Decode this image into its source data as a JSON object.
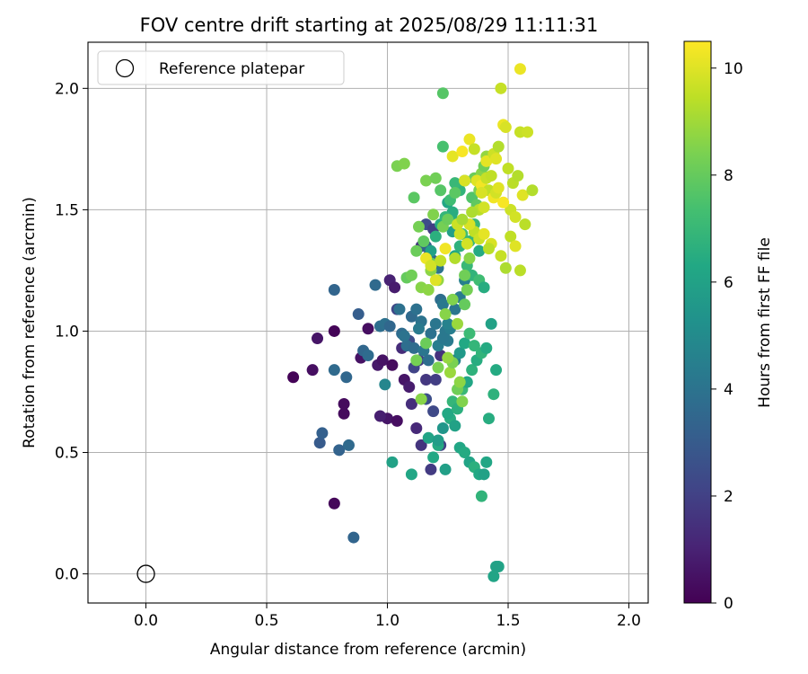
{
  "chart_data": {
    "type": "scatter",
    "title": "FOV centre drift starting at 2025/08/29 11:11:31",
    "xlabel": "Angular distance from reference (arcmin)",
    "ylabel": "Rotation from reference (arcmin)",
    "xlim": [
      -0.24,
      2.08
    ],
    "ylim": [
      -0.12,
      2.19
    ],
    "xticks": [
      "0.0",
      "0.5",
      "1.0",
      "1.5",
      "2.0"
    ],
    "yticks": [
      "0.0",
      "0.5",
      "1.0",
      "1.5",
      "2.0"
    ],
    "grid": true,
    "legend": {
      "placement": "top-left",
      "entries": [
        "Reference platepar"
      ]
    },
    "reference_point": {
      "x": 0.0,
      "y": 0.0
    },
    "colorbar": {
      "label": "Hours from first FF file",
      "colormap": "viridis",
      "range": [
        0,
        10.5
      ],
      "ticks": [
        "0",
        "2",
        "4",
        "6",
        "8",
        "10"
      ]
    },
    "series": [
      {
        "x": [
          0.61,
          0.69,
          0.71,
          0.78,
          0.82,
          0.82,
          0.89,
          0.92,
          0.96,
          0.98,
          1.0,
          1.02,
          1.04,
          1.07,
          1.09,
          0.97,
          1.01,
          1.03,
          1.06,
          1.1,
          1.12,
          1.14,
          1.16,
          1.18,
          1.2,
          1.22,
          0.78,
          1.04,
          1.09,
          1.11,
          1.13,
          1.16,
          1.19,
          1.22,
          1.14,
          1.17,
          1.2,
          1.16,
          1.19
        ],
        "y": [
          0.81,
          0.84,
          0.97,
          1.0,
          0.66,
          0.7,
          0.89,
          1.01,
          0.86,
          0.88,
          0.64,
          0.86,
          0.63,
          0.8,
          0.77,
          0.65,
          1.21,
          1.18,
          0.93,
          0.7,
          0.6,
          0.53,
          0.8,
          0.43,
          0.8,
          0.53,
          0.29,
          1.09,
          0.96,
          0.85,
          0.88,
          0.72,
          0.67,
          0.9,
          1.35,
          1.31,
          1.28,
          1.44,
          1.42
        ],
        "hours": [
          0.1,
          0.4,
          0.6,
          0.1,
          0.3,
          0.3,
          0.5,
          0.4,
          0.7,
          0.5,
          0.6,
          0.3,
          0.4,
          0.6,
          0.8,
          0.9,
          1.0,
          0.8,
          1.3,
          1.4,
          1.2,
          1.6,
          1.7,
          1.8,
          1.9,
          2.0,
          0.2,
          2.2,
          2.4,
          2.1,
          1.8,
          2.5,
          2.3,
          1.5,
          1.6,
          2.0,
          1.7,
          2.4,
          1.9
        ]
      },
      {
        "x": [
          0.72,
          0.73,
          0.78,
          0.8,
          0.83,
          0.84,
          0.86,
          0.88,
          0.9,
          0.92,
          0.95,
          0.97,
          0.99,
          1.01,
          1.06,
          1.08,
          1.1,
          1.12,
          1.14,
          1.18,
          1.2,
          1.22,
          1.24,
          1.25,
          1.16,
          1.19,
          1.21,
          1.23,
          1.26,
          1.28,
          1.3,
          1.32,
          1.05,
          1.07,
          1.11,
          1.13,
          1.15,
          1.17,
          1.21,
          1.23,
          1.25,
          1.28,
          0.78
        ],
        "y": [
          0.54,
          0.58,
          1.17,
          0.51,
          0.81,
          0.53,
          0.15,
          1.07,
          0.92,
          0.9,
          1.19,
          1.02,
          1.03,
          1.02,
          0.99,
          0.94,
          1.06,
          1.09,
          1.04,
          0.99,
          1.03,
          1.13,
          1.0,
          0.96,
          1.35,
          1.29,
          1.26,
          1.11,
          1.01,
          1.09,
          1.14,
          1.21,
          1.09,
          0.98,
          0.93,
          1.01,
          0.92,
          0.88,
          0.94,
          0.97,
          1.03,
          0.88,
          0.84
        ],
        "hours": [
          3.0,
          3.2,
          3.4,
          3.3,
          3.5,
          3.6,
          3.4,
          3.1,
          3.5,
          3.7,
          3.6,
          3.8,
          3.9,
          3.5,
          3.7,
          3.8,
          3.6,
          3.9,
          4.0,
          3.9,
          4.1,
          3.8,
          4.2,
          4.3,
          3.3,
          3.5,
          4.0,
          4.2,
          4.4,
          4.1,
          4.3,
          4.5,
          3.9,
          4.0,
          3.7,
          4.3,
          4.1,
          3.8,
          4.4,
          4.2,
          4.6,
          4.5,
          3.6
        ]
      },
      {
        "x": [
          0.99,
          1.02,
          1.1,
          1.17,
          1.19,
          1.21,
          1.24,
          1.26,
          1.28,
          1.3,
          1.32,
          1.34,
          1.36,
          1.38,
          1.39,
          1.4,
          1.41,
          1.42,
          1.44,
          1.45,
          1.46,
          1.21,
          1.23,
          1.25,
          1.27,
          1.29,
          1.31,
          1.33,
          1.35,
          1.37,
          1.39,
          1.41,
          1.43,
          1.3,
          1.32,
          1.34,
          1.36,
          1.28,
          1.3,
          1.33,
          1.35,
          1.38,
          1.4,
          1.27,
          1.29,
          1.31,
          1.34,
          1.36,
          1.38,
          1.25,
          1.27,
          1.3,
          1.32,
          1.18,
          1.2,
          1.22,
          1.24,
          1.26,
          1.28
        ],
        "y": [
          0.78,
          0.46,
          0.41,
          0.56,
          0.48,
          0.53,
          0.43,
          0.64,
          0.61,
          0.52,
          0.5,
          0.46,
          0.44,
          0.41,
          0.32,
          0.41,
          0.46,
          0.64,
          0.74,
          0.84,
          0.03,
          0.55,
          0.6,
          0.66,
          0.71,
          0.68,
          0.76,
          0.79,
          0.84,
          0.88,
          0.91,
          0.93,
          1.03,
          0.91,
          0.95,
          0.99,
          0.94,
          1.31,
          1.35,
          1.27,
          1.23,
          1.21,
          1.18,
          1.41,
          1.45,
          1.4,
          1.37,
          1.44,
          1.33,
          1.53,
          1.49,
          1.58,
          1.62,
          1.33,
          1.39,
          1.44,
          1.47,
          1.54,
          1.61
        ],
        "hours": [
          4.8,
          6.0,
          6.2,
          6.1,
          6.3,
          6.4,
          5.9,
          6.5,
          6.0,
          6.2,
          6.4,
          6.1,
          6.6,
          6.3,
          6.8,
          6.0,
          6.2,
          6.5,
          6.7,
          6.4,
          6.1,
          5.8,
          5.5,
          6.3,
          6.9,
          6.6,
          7.0,
          6.2,
          6.7,
          6.5,
          6.8,
          6.4,
          6.0,
          5.6,
          6.3,
          7.1,
          6.9,
          6.3,
          6.7,
          7.0,
          6.8,
          7.2,
          6.5,
          5.9,
          6.6,
          7.3,
          6.9,
          7.0,
          6.4,
          6.2,
          6.5,
          6.8,
          7.1,
          6.0,
          6.6,
          6.4,
          6.9,
          7.2,
          7.0
        ]
      },
      {
        "x": [
          1.04,
          1.07,
          1.08,
          1.1,
          1.11,
          1.12,
          1.13,
          1.14,
          1.15,
          1.16,
          1.17,
          1.18,
          1.19,
          1.2,
          1.21,
          1.22,
          1.23,
          1.24,
          1.25,
          1.26,
          1.27,
          1.28,
          1.29,
          1.3,
          1.31,
          1.32,
          1.33,
          1.35,
          1.36,
          1.37,
          1.38,
          1.39,
          1.4,
          1.41,
          1.23,
          1.23,
          1.12,
          1.14,
          1.16,
          1.18,
          1.21,
          1.25,
          1.27,
          1.29,
          1.32,
          1.34
        ],
        "y": [
          1.68,
          1.69,
          1.22,
          1.23,
          1.55,
          1.33,
          1.43,
          1.18,
          1.37,
          1.62,
          1.17,
          1.28,
          1.48,
          1.63,
          1.21,
          1.58,
          1.43,
          1.07,
          1.46,
          0.83,
          0.87,
          1.57,
          0.76,
          0.79,
          0.71,
          1.11,
          1.17,
          1.55,
          1.63,
          1.52,
          1.58,
          1.65,
          1.68,
          1.72,
          1.98,
          1.76,
          0.88,
          0.72,
          0.95,
          1.25,
          0.85,
          0.89,
          1.13,
          1.03,
          1.23,
          1.3
        ],
        "hours": [
          8.4,
          8.5,
          8.0,
          8.2,
          7.8,
          8.1,
          8.3,
          8.6,
          7.9,
          8.4,
          8.7,
          8.0,
          8.5,
          8.2,
          8.8,
          7.7,
          8.3,
          8.6,
          8.1,
          8.9,
          8.4,
          7.8,
          8.2,
          8.7,
          8.5,
          8.0,
          8.3,
          7.6,
          8.1,
          7.9,
          8.4,
          8.6,
          8.2,
          8.8,
          7.7,
          7.4,
          8.3,
          8.6,
          8.1,
          8.7,
          8.4,
          8.8,
          8.5,
          8.9,
          8.2,
          8.6
        ]
      },
      {
        "x": [
          1.16,
          1.18,
          1.2,
          1.22,
          1.24,
          1.27,
          1.29,
          1.31,
          1.32,
          1.34,
          1.36,
          1.37,
          1.38,
          1.39,
          1.4,
          1.41,
          1.42,
          1.43,
          1.44,
          1.45,
          1.46,
          1.47,
          1.48,
          1.49,
          1.5,
          1.51,
          1.52,
          1.53,
          1.54,
          1.55,
          1.56,
          1.57,
          1.58,
          1.6,
          1.36,
          1.34,
          1.38,
          1.4,
          1.42,
          1.44,
          1.45,
          1.47,
          1.49,
          1.51,
          1.53,
          1.55,
          1.31,
          1.33,
          1.35,
          1.39,
          1.41,
          1.28,
          1.3,
          1.43,
          1.46,
          1.48
        ],
        "y": [
          1.3,
          1.27,
          1.21,
          1.29,
          1.34,
          1.72,
          1.44,
          1.74,
          1.62,
          1.79,
          1.75,
          1.62,
          1.5,
          1.6,
          1.51,
          1.7,
          1.58,
          1.36,
          1.73,
          1.71,
          1.76,
          2.0,
          1.85,
          1.84,
          1.67,
          1.5,
          1.61,
          1.47,
          1.64,
          1.82,
          1.56,
          1.44,
          1.82,
          1.58,
          1.41,
          1.44,
          1.38,
          1.4,
          1.34,
          1.55,
          1.57,
          1.31,
          1.26,
          1.39,
          1.35,
          1.25,
          1.46,
          1.36,
          1.49,
          1.57,
          1.63,
          1.3,
          1.4,
          1.64,
          1.59,
          1.53
        ],
        "hours": [
          10.2,
          9.8,
          10.0,
          9.5,
          10.3,
          10.1,
          9.7,
          10.4,
          9.9,
          10.2,
          9.6,
          10.0,
          9.4,
          10.3,
          9.8,
          10.1,
          9.5,
          9.9,
          9.7,
          10.0,
          9.3,
          9.6,
          10.2,
          9.9,
          9.5,
          9.7,
          9.4,
          9.8,
          9.3,
          9.6,
          10.0,
          9.4,
          9.7,
          9.3,
          9.5,
          9.9,
          9.7,
          10.1,
          9.4,
          10.3,
          9.8,
          9.6,
          9.2,
          9.5,
          10.0,
          9.4,
          9.1,
          9.8,
          9.2,
          9.9,
          9.6,
          9.3,
          9.7,
          9.5,
          10.0,
          10.4
        ]
      },
      {
        "x": [
          1.45,
          1.44,
          1.55
        ],
        "y": [
          0.03,
          -0.01,
          2.08
        ],
        "hours": [
          6.0,
          6.1,
          10.2
        ]
      }
    ]
  }
}
